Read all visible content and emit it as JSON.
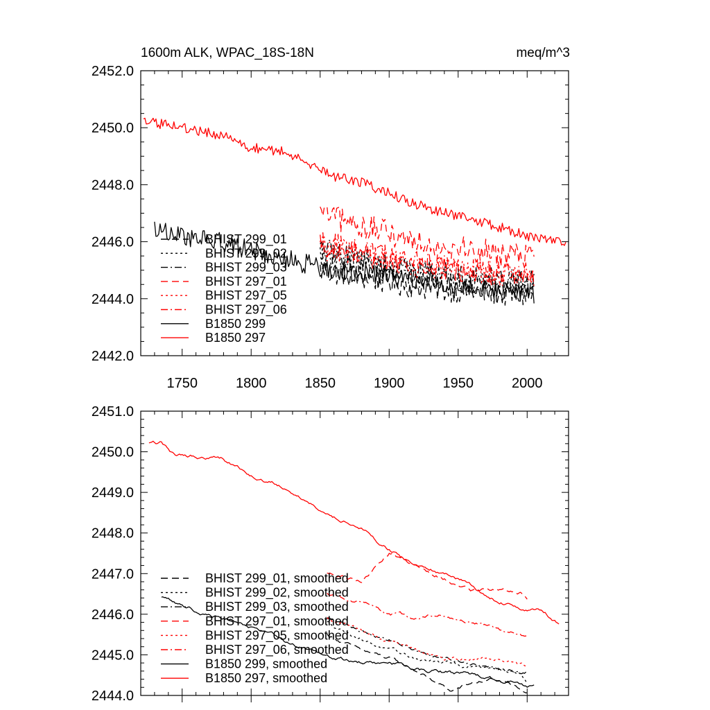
{
  "chart_data": [
    {
      "type": "line",
      "title": "1600m ALK, WPAC_18S-18N",
      "units_label": "meq/m^3",
      "xlim": [
        1720,
        2030
      ],
      "ylim": [
        2442.0,
        2452.0
      ],
      "x_ticks": [
        1750,
        1800,
        1850,
        1900,
        1950,
        2000
      ],
      "x_tick_labels": [
        "1750",
        "1800",
        "1850",
        "1900",
        "1950",
        "2000"
      ],
      "y_ticks": [
        2442,
        2444,
        2446,
        2448,
        2450,
        2452
      ],
      "y_tick_labels": [
        "2442.0",
        "2444.0",
        "2446.0",
        "2448.0",
        "2450.0",
        "2452.0"
      ],
      "legend": [
        "BHIST 299_01",
        "BHIST 299_02",
        "BHIST 299_03",
        "BHIST 297_01",
        "BHIST 297_05",
        "BHIST 297_06",
        "B1850 299",
        "B1850 297"
      ],
      "series": [
        {
          "name": "BHIST 299_01",
          "color": "#000000",
          "dash": "dash",
          "x": [
            1850,
            1875,
            1900,
            1925,
            1950,
            1975,
            2005
          ],
          "values": [
            2445.0,
            2444.8,
            2444.6,
            2444.4,
            2444.3,
            2444.2,
            2444.1
          ],
          "noise": 0.45
        },
        {
          "name": "BHIST 299_02",
          "color": "#000000",
          "dash": "dot",
          "x": [
            1850,
            1875,
            1900,
            1925,
            1950,
            1975,
            2005
          ],
          "values": [
            2445.6,
            2445.3,
            2445.0,
            2444.8,
            2444.7,
            2444.6,
            2444.5
          ],
          "noise": 0.45
        },
        {
          "name": "BHIST 299_03",
          "color": "#000000",
          "dash": "dashdot",
          "x": [
            1850,
            1875,
            1900,
            1925,
            1950,
            1975,
            2005
          ],
          "values": [
            2445.7,
            2445.4,
            2445.1,
            2444.9,
            2444.8,
            2444.7,
            2444.6
          ],
          "noise": 0.45
        },
        {
          "name": "BHIST 297_01",
          "color": "#ff0000",
          "dash": "dash",
          "x": [
            1850,
            1875,
            1900,
            1925,
            1950,
            1975,
            2005
          ],
          "values": [
            2447.0,
            2446.6,
            2446.3,
            2446.0,
            2445.8,
            2445.6,
            2445.5
          ],
          "noise": 0.45
        },
        {
          "name": "BHIST 297_05",
          "color": "#ff0000",
          "dash": "dot",
          "x": [
            1850,
            1875,
            1900,
            1925,
            1950,
            1975,
            2005
          ],
          "values": [
            2445.8,
            2445.6,
            2445.3,
            2445.1,
            2445.0,
            2444.9,
            2444.8
          ],
          "noise": 0.45
        },
        {
          "name": "BHIST 297_06",
          "color": "#ff0000",
          "dash": "dashdot",
          "x": [
            1850,
            1875,
            1900,
            1925,
            1950,
            1975,
            2005
          ],
          "values": [
            2446.0,
            2445.7,
            2445.4,
            2445.2,
            2445.0,
            2444.9,
            2444.8
          ],
          "noise": 0.45
        },
        {
          "name": "B1850 299",
          "color": "#000000",
          "dash": "solid",
          "x": [
            1730,
            1750,
            1775,
            1800,
            1825,
            1850,
            1875,
            1900,
            1925,
            1950,
            1975,
            2005
          ],
          "values": [
            2446.5,
            2446.2,
            2446.0,
            2445.7,
            2445.4,
            2445.1,
            2444.9,
            2444.8,
            2444.6,
            2444.5,
            2444.3,
            2444.1
          ],
          "noise": 0.35
        },
        {
          "name": "B1850 297",
          "color": "#ff0000",
          "dash": "solid",
          "x": [
            1722,
            1740,
            1760,
            1780,
            1800,
            1820,
            1840,
            1860,
            1880,
            1900,
            1920,
            1940,
            1960,
            1980,
            2000,
            2028
          ],
          "values": [
            2450.2,
            2450.1,
            2449.9,
            2449.7,
            2449.3,
            2449.2,
            2448.8,
            2448.3,
            2448.1,
            2447.7,
            2447.3,
            2447.0,
            2446.8,
            2446.5,
            2446.2,
            2445.9
          ],
          "noise": 0.18
        }
      ]
    },
    {
      "type": "line",
      "title": "",
      "xlim": [
        1720,
        2030
      ],
      "ylim": [
        2444.0,
        2451.0
      ],
      "x_ticks": [
        1750,
        1800,
        1850,
        1900,
        1950,
        2000
      ],
      "y_ticks": [
        2444,
        2445,
        2446,
        2447,
        2448,
        2449,
        2450,
        2451
      ],
      "y_tick_labels": [
        "2444.0",
        "2445.0",
        "2446.0",
        "2447.0",
        "2448.0",
        "2449.0",
        "2450.0",
        "2451.0"
      ],
      "legend": [
        "BHIST 299_01, smoothed",
        "BHIST 299_02, smoothed",
        "BHIST 299_03, smoothed",
        "BHIST 297_01, smoothed",
        "BHIST 297_05, smoothed",
        "BHIST 297_06, smoothed",
        "B1850 299, smoothed",
        "B1850 297, smoothed"
      ],
      "series": [
        {
          "name": "BHIST 299_01, smoothed",
          "color": "#000000",
          "dash": "dash",
          "x": [
            1855,
            1880,
            1900,
            1920,
            1935,
            1945,
            1960,
            1975,
            1990,
            2000
          ],
          "values": [
            2445.5,
            2445.1,
            2444.9,
            2444.6,
            2444.3,
            2444.1,
            2444.3,
            2444.4,
            2444.2,
            2444.1
          ],
          "noise": 0.03
        },
        {
          "name": "BHIST 299_02, smoothed",
          "color": "#000000",
          "dash": "dot",
          "x": [
            1855,
            1880,
            1900,
            1920,
            1940,
            1960,
            1980,
            1995,
            2000
          ],
          "values": [
            2445.8,
            2445.4,
            2445.1,
            2444.9,
            2444.8,
            2444.7,
            2444.7,
            2444.6,
            2444.3
          ],
          "noise": 0.03
        },
        {
          "name": "BHIST 299_03, smoothed",
          "color": "#000000",
          "dash": "dashdot",
          "x": [
            1855,
            1880,
            1900,
            1920,
            1940,
            1960,
            1980,
            2000
          ],
          "values": [
            2445.9,
            2445.6,
            2445.4,
            2445.1,
            2444.9,
            2444.8,
            2444.7,
            2444.6
          ],
          "noise": 0.03
        },
        {
          "name": "BHIST 297_01, smoothed",
          "color": "#ff0000",
          "dash": "dash",
          "x": [
            1855,
            1880,
            1900,
            1920,
            1940,
            1960,
            1980,
            1995,
            2000
          ],
          "values": [
            2447.0,
            2446.8,
            2447.5,
            2447.2,
            2446.9,
            2446.6,
            2446.6,
            2446.5,
            2446.4
          ],
          "noise": 0.03
        },
        {
          "name": "BHIST 297_05, smoothed",
          "color": "#ff0000",
          "dash": "dot",
          "x": [
            1855,
            1880,
            1900,
            1920,
            1940,
            1960,
            1980,
            2000
          ],
          "values": [
            2445.9,
            2445.6,
            2445.3,
            2445.1,
            2444.9,
            2444.9,
            2444.9,
            2444.7
          ],
          "noise": 0.03
        },
        {
          "name": "BHIST 297_06, smoothed",
          "color": "#ff0000",
          "dash": "dashdot",
          "x": [
            1855,
            1880,
            1900,
            1920,
            1940,
            1960,
            1980,
            2000
          ],
          "values": [
            2446.5,
            2446.3,
            2446.0,
            2445.9,
            2446.0,
            2445.8,
            2445.6,
            2445.4
          ],
          "noise": 0.03
        },
        {
          "name": "B1850 299, smoothed",
          "color": "#000000",
          "dash": "solid",
          "x": [
            1735,
            1760,
            1790,
            1820,
            1850,
            1880,
            1900,
            1930,
            1960,
            1990,
            2005
          ],
          "values": [
            2446.4,
            2446.1,
            2445.8,
            2445.4,
            2445.0,
            2444.8,
            2444.8,
            2444.6,
            2444.5,
            2444.3,
            2444.2
          ],
          "noise": 0.03
        },
        {
          "name": "B1850 297, smoothed",
          "color": "#ff0000",
          "dash": "solid",
          "x": [
            1726,
            1735,
            1745,
            1760,
            1780,
            1800,
            1820,
            1840,
            1860,
            1880,
            1900,
            1920,
            1940,
            1960,
            1980,
            2000,
            2010,
            2023
          ],
          "values": [
            2450.2,
            2450.2,
            2449.9,
            2449.9,
            2449.8,
            2449.4,
            2449.2,
            2448.8,
            2448.4,
            2448.1,
            2447.6,
            2447.2,
            2447.0,
            2446.7,
            2446.3,
            2446.1,
            2446.1,
            2445.8
          ],
          "noise": 0.03
        }
      ]
    }
  ]
}
